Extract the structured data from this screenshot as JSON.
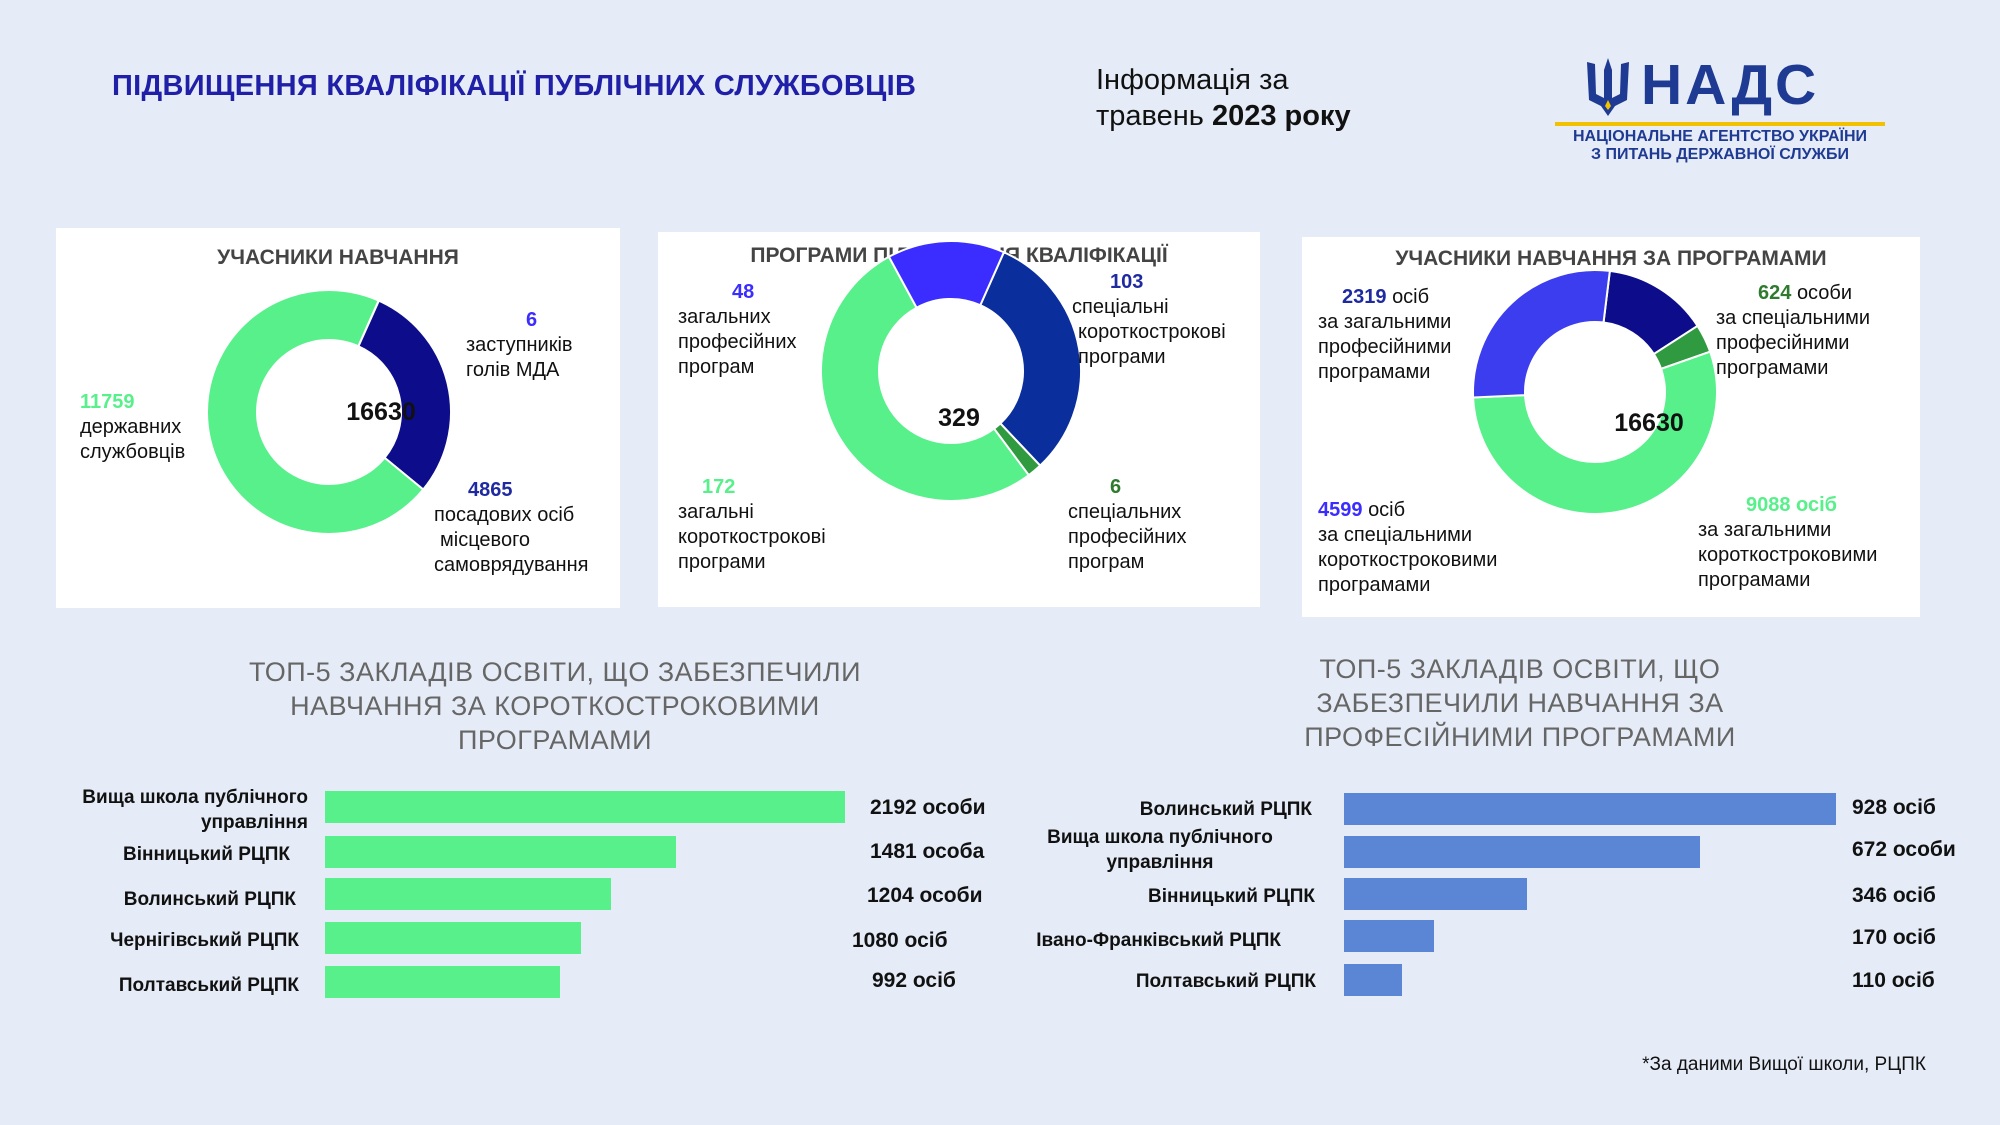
{
  "header": {
    "title": "ПІДВИЩЕННЯ КВАЛІФІКАЦІЇ ПУБЛІЧНИХ СЛУЖБОВЦІВ",
    "info_line1": "Інформація за",
    "info_line2_month": "травень",
    "info_line2_year": "2023 року"
  },
  "logo": {
    "name": "НАДС",
    "subtitle_line1": "НАЦІОНАЛЬНЕ АГЕНТСТВО УКРАЇНИ",
    "subtitle_line2": "З ПИТАНЬ ДЕРЖАВНОЇ СЛУЖБИ"
  },
  "chart_data": [
    {
      "type": "pie",
      "title": "УЧАСНИКИ НАВЧАННЯ",
      "center": "16630",
      "slices": [
        {
          "value": 11759,
          "label": "11759",
          "desc1": "державних",
          "desc2": "службовців",
          "desc3": "",
          "color": "#57f08a"
        },
        {
          "value": 4865,
          "label": "4865",
          "desc1": "посадових осіб",
          "desc2": "місцевого",
          "desc3": "самоврядування",
          "color": "#0d0d8c"
        },
        {
          "value": 6,
          "label": "6",
          "desc1": "заступників",
          "desc2": "голів МДА",
          "desc3": "",
          "color": "#2b2bd1"
        }
      ]
    },
    {
      "type": "pie",
      "title": "ПРОГРАМИ ПІДВИЩЕННЯ КВАЛІФІКАЦІЇ",
      "center": "329",
      "slices": [
        {
          "value": 48,
          "label": "48",
          "desc1": "загальних",
          "desc2": "професійних",
          "desc3": "програм",
          "color": "#3b2dff"
        },
        {
          "value": 103,
          "label": "103",
          "desc1": "спеціальні",
          "desc2": "короткострокові",
          "desc3": "програми",
          "color": "#0a2f9c"
        },
        {
          "value": 6,
          "label": "6",
          "desc1": "спеціальних",
          "desc2": "професійних",
          "desc3": "програм",
          "color": "#2f9a3f"
        },
        {
          "value": 172,
          "label": "172",
          "desc1": "загальні",
          "desc2": "короткострокові",
          "desc3": "програми",
          "color": "#57f08a"
        }
      ]
    },
    {
      "type": "pie",
      "title": "УЧАСНИКИ НАВЧАННЯ ЗА ПРОГРАМАМИ",
      "center": "16630",
      "slices": [
        {
          "value": 2319,
          "label": "2319",
          "unit": "осіб",
          "desc1": "за загальними",
          "desc2": "професійними",
          "desc3": "програмами",
          "color": "#0d0d8c"
        },
        {
          "value": 624,
          "label": "624",
          "unit": "особи",
          "desc1": "за спеціальними",
          "desc2": "професійними",
          "desc3": "програмами",
          "color": "#2f9a3f"
        },
        {
          "value": 9088,
          "label": "9088 осіб",
          "unit": "",
          "desc1": "за загальними",
          "desc2": "короткостроковими",
          "desc3": "програмами",
          "color": "#57f08a"
        },
        {
          "value": 4599,
          "label": "4599",
          "unit": "осіб",
          "desc1": "за спеціальними",
          "desc2": "короткостроковими",
          "desc3": "програмами",
          "color": "#3d3df0"
        }
      ]
    },
    {
      "type": "bar",
      "orientation": "horizontal",
      "title_lines": [
        "ТОП-5 ЗАКЛАДІВ ОСВІТИ, ЩО ЗАБЕЗПЕЧИЛИ",
        "НАВЧАННЯ ЗА КОРОТКОСТРОКОВИМИ",
        "ПРОГРАМАМИ"
      ],
      "color": "#57f08a",
      "categories": [
        "Вища школа публічного управління",
        "Вінницький РЦПК",
        "Волинський РЦПК",
        "Чернігівський РЦПК",
        "Полтавський РЦПК"
      ],
      "values": [
        2192,
        1481,
        1204,
        1080,
        992
      ],
      "value_labels": [
        "2192 особи",
        "1481 особа",
        "1204 особи",
        "1080 осіб",
        "992 осіб"
      ]
    },
    {
      "type": "bar",
      "orientation": "horizontal",
      "title_lines": [
        "ТОП-5 ЗАКЛАДІВ ОСВІТИ, ЩО",
        "ЗАБЕЗПЕЧИЛИ НАВЧАННЯ ЗА",
        "ПРОФЕСІЙНИМИ ПРОГРАМАМИ"
      ],
      "color": "#5b86d6",
      "categories": [
        "Волинський РЦПК",
        "Вища школа публічного управління",
        "Вінницький РЦПК",
        "Івано-Франківський РЦПК",
        "Полтавський РЦПК"
      ],
      "values": [
        928,
        672,
        346,
        170,
        110
      ],
      "value_labels": [
        "928 осіб",
        "672 особи",
        "346 осіб",
        "170 осіб",
        "110 осіб"
      ]
    }
  ],
  "footnote": "*За даними Вищої школи, РЦПК"
}
